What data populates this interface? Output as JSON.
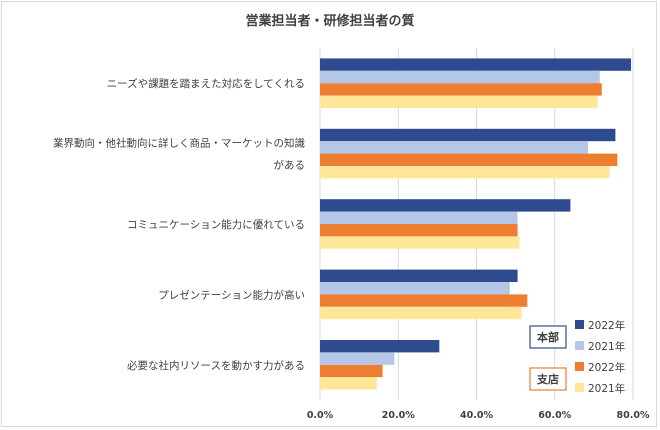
{
  "chart_data": {
    "type": "bar",
    "orientation": "horizontal",
    "title": "営業担当者・研修担当者の質",
    "categories": [
      [
        "ニーズや課題を踏まえた対応をしてくれる"
      ],
      [
        "業界動向・他社動向に詳しく商品・マーケットの知識",
        "がある"
      ],
      [
        "コミュニケーション能力に優れている"
      ],
      [
        "プレゼンテーション能力が高い"
      ],
      [
        "必要な社内リソースを動かす力がある"
      ]
    ],
    "series": [
      {
        "name": "2022年",
        "group": "本部",
        "color": "#2f4b8f",
        "values": [
          79.5,
          75.5,
          64,
          50.5,
          30.5
        ]
      },
      {
        "name": "2021年",
        "group": "本部",
        "color": "#b4c7e7",
        "values": [
          71.5,
          68.5,
          50.5,
          48.5,
          19
        ]
      },
      {
        "name": "2022年",
        "group": "支店",
        "color": "#ed7d31",
        "values": [
          72,
          76,
          50.5,
          53,
          16
        ]
      },
      {
        "name": "2021年",
        "group": "支店",
        "color": "#ffe699",
        "values": [
          71,
          74,
          51,
          51.5,
          14.5
        ]
      }
    ],
    "xlim": [
      0,
      80
    ],
    "xticks": [
      "0.0%",
      "20.0%",
      "40.0%",
      "60.0%",
      "80.0%"
    ],
    "grid": true,
    "legend": {
      "position": "bottom-right",
      "groups": [
        {
          "label": "本部",
          "border_color": "#2f4b8f"
        },
        {
          "label": "支店",
          "border_color": "#ed7d31"
        }
      ]
    }
  }
}
